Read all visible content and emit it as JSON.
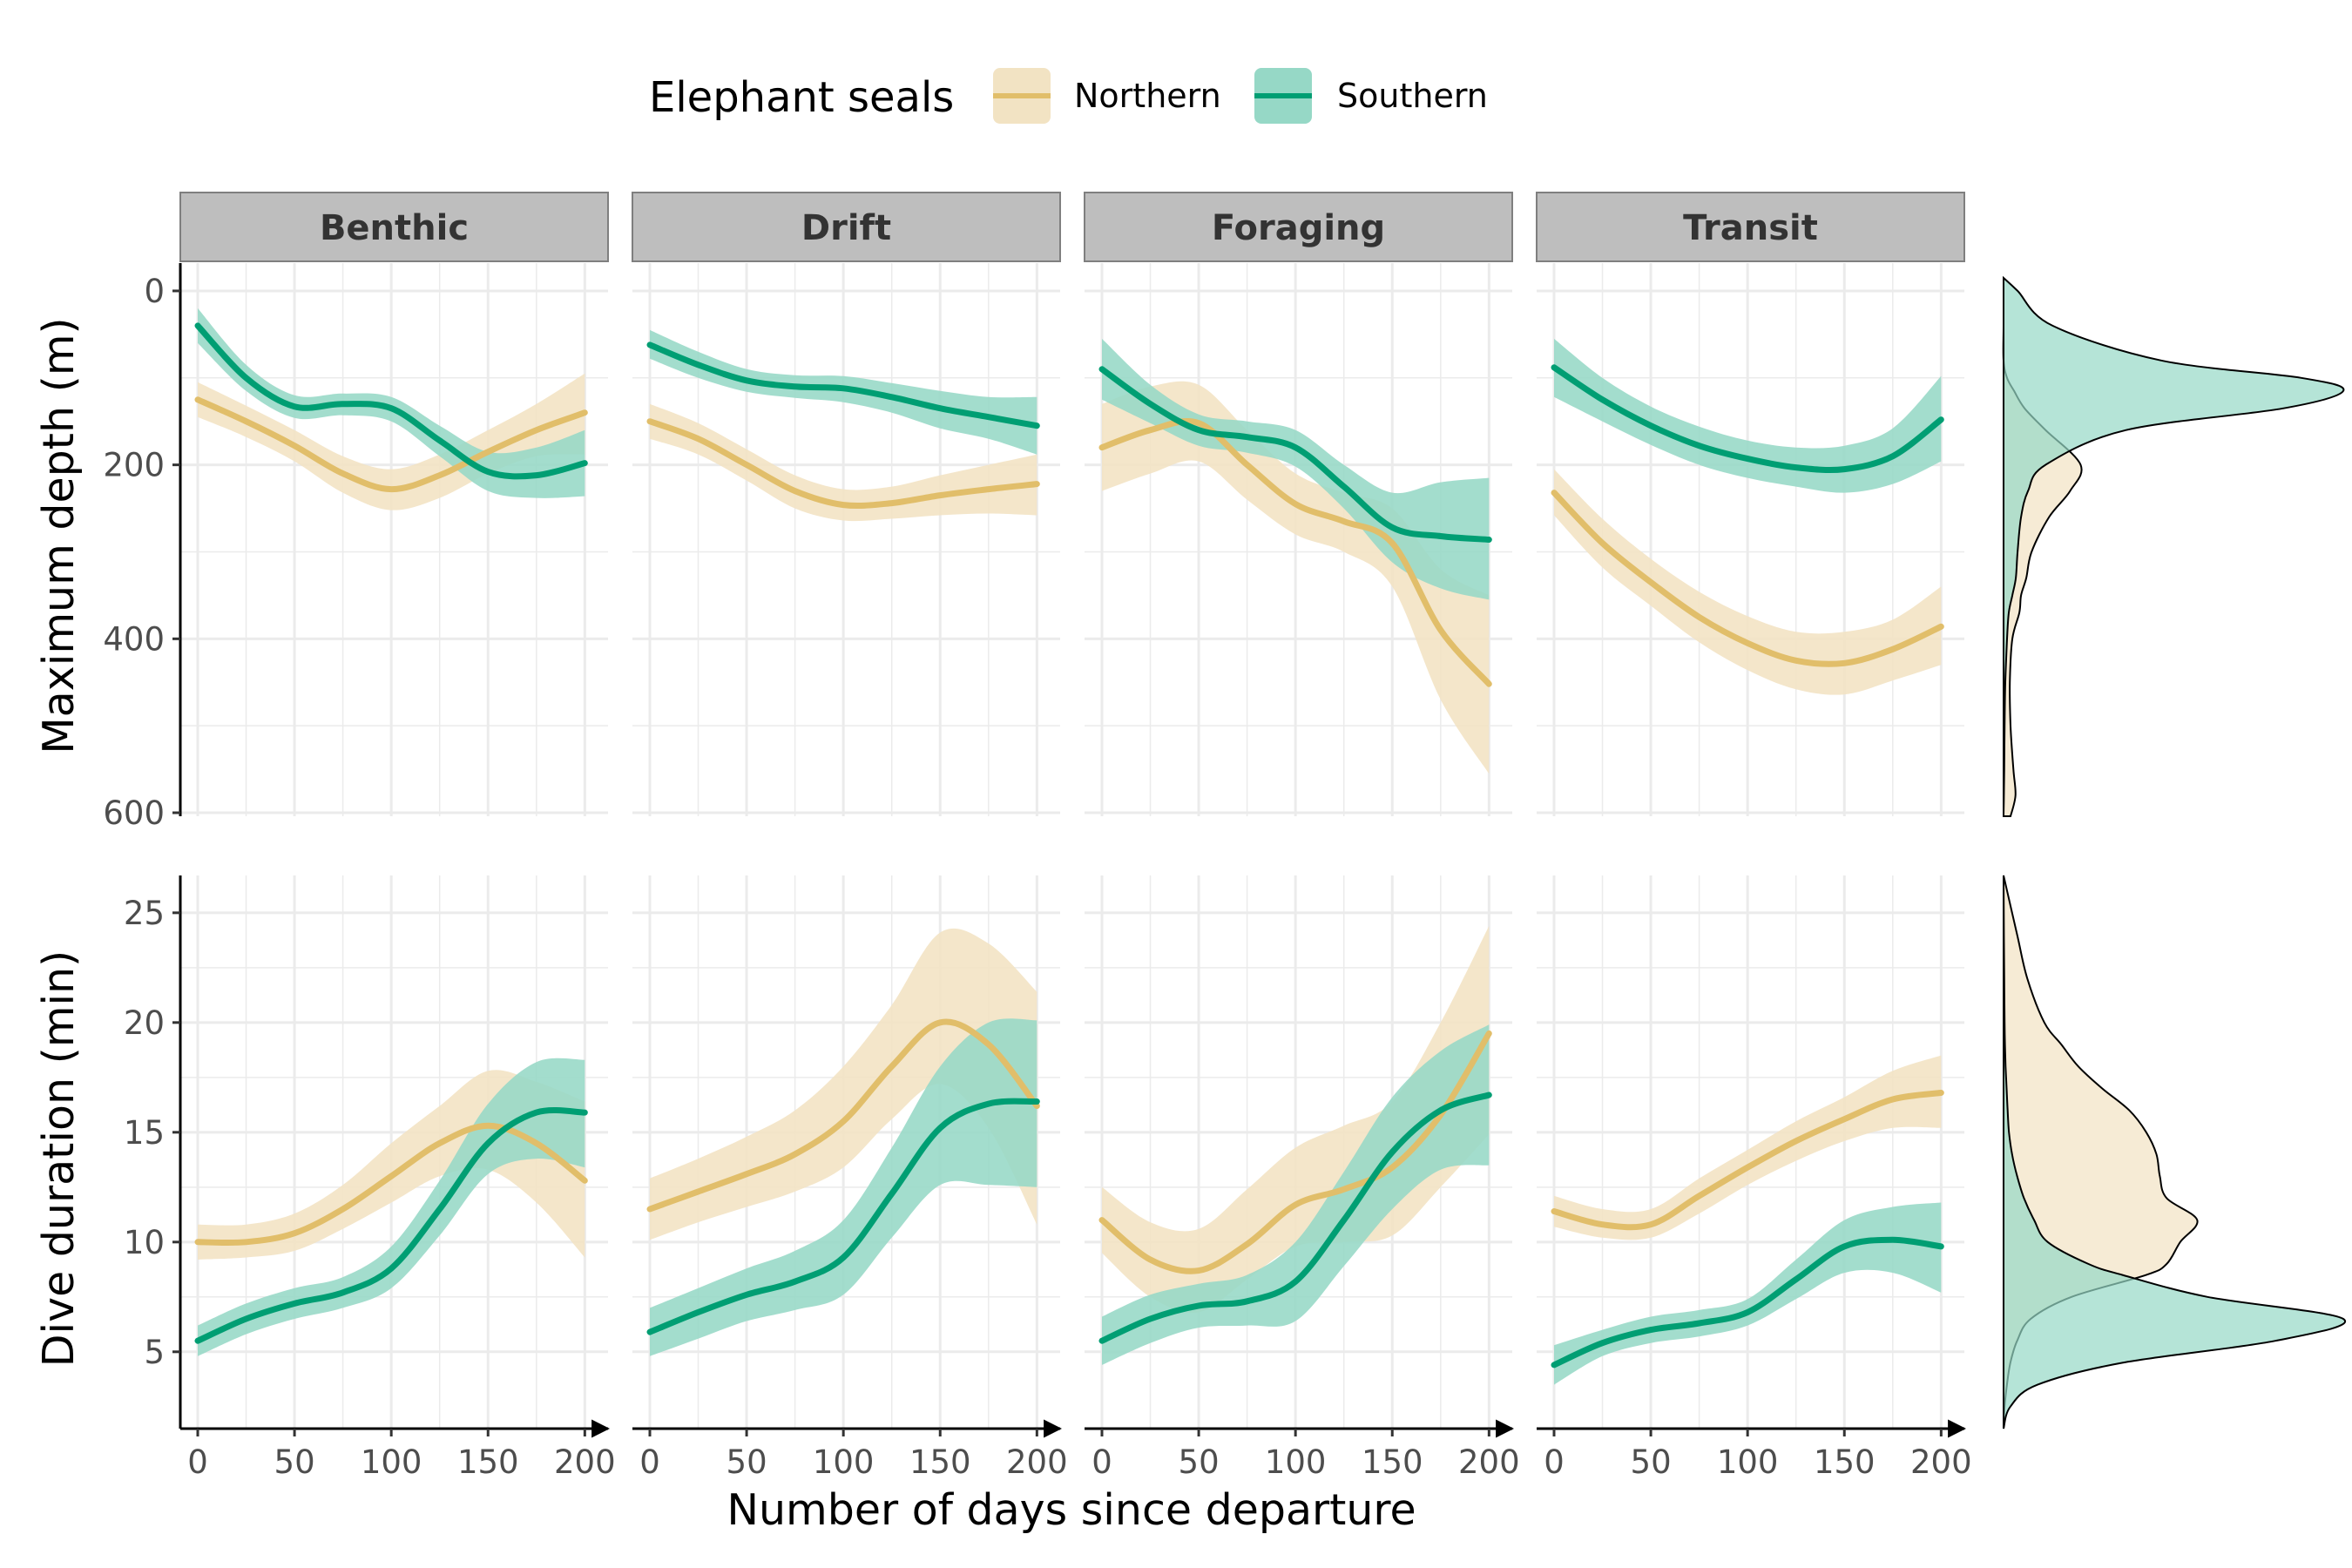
{
  "legend": {
    "title": "Elephant seals",
    "items": [
      {
        "label": "Northern",
        "line_color": "#E1BE6A",
        "fill_color": "#F2E3C3"
      },
      {
        "label": "Southern",
        "line_color": "#009E73",
        "fill_color": "#96D8C6"
      }
    ]
  },
  "axes": {
    "x_title": "Number of days since departure",
    "depth_title": "Maximum depth (m)",
    "duration_title": "Dive duration (min)"
  },
  "chart_data": {
    "type": "line",
    "facets": [
      "Benthic",
      "Drift",
      "Foraging",
      "Transit"
    ],
    "series_names": [
      "Northern",
      "Southern"
    ],
    "x_ticks": [
      0,
      50,
      100,
      150,
      200
    ],
    "xlim": [
      -9,
      212
    ],
    "depth": {
      "ylabel": "Maximum depth (m)",
      "y_ticks": [
        0,
        200,
        400,
        600
      ],
      "ylim": [
        -32,
        604
      ],
      "reversed": true,
      "panels": [
        {
          "facet": "Benthic",
          "series": [
            {
              "name": "Northern",
              "x": [
                0,
                25,
                50,
                75,
                100,
                125,
                150,
                175,
                200
              ],
              "y": [
                125,
                150,
                178,
                210,
                228,
                212,
                185,
                160,
                140
              ],
              "lower": [
                105,
                132,
                160,
                190,
                205,
                188,
                160,
                130,
                95
              ],
              "upper": [
                145,
                168,
                196,
                232,
                252,
                238,
                210,
                190,
                188
              ]
            },
            {
              "name": "Southern",
              "x": [
                0,
                25,
                50,
                75,
                100,
                125,
                150,
                175,
                200
              ],
              "y": [
                40,
                100,
                133,
                130,
                135,
                172,
                208,
                212,
                198
              ],
              "lower": [
                20,
                85,
                120,
                118,
                122,
                155,
                185,
                180,
                160
              ],
              "upper": [
                60,
                115,
                146,
                143,
                150,
                190,
                230,
                238,
                236
              ]
            }
          ]
        },
        {
          "facet": "Drift",
          "series": [
            {
              "name": "Northern",
              "x": [
                0,
                25,
                50,
                75,
                100,
                125,
                150,
                175,
                200
              ],
              "y": [
                150,
                170,
                200,
                230,
                246,
                244,
                235,
                228,
                222
              ],
              "lower": [
                130,
                152,
                182,
                212,
                228,
                225,
                212,
                200,
                188
              ],
              "upper": [
                170,
                188,
                218,
                250,
                264,
                262,
                258,
                256,
                258
              ]
            },
            {
              "name": "Southern",
              "x": [
                0,
                25,
                50,
                75,
                100,
                125,
                150,
                175,
                200
              ],
              "y": [
                62,
                85,
                103,
                110,
                112,
                122,
                135,
                145,
                155
              ],
              "lower": [
                45,
                70,
                90,
                97,
                98,
                106,
                115,
                122,
                122
              ],
              "upper": [
                78,
                100,
                116,
                123,
                128,
                140,
                158,
                170,
                188
              ]
            }
          ]
        },
        {
          "facet": "Foraging",
          "series": [
            {
              "name": "Northern",
              "x": [
                0,
                25,
                50,
                75,
                100,
                125,
                150,
                175,
                200
              ],
              "y": [
                180,
                160,
                152,
                200,
                245,
                265,
                290,
                390,
                452
              ],
              "lower": [
                130,
                110,
                108,
                160,
                210,
                232,
                250,
                320,
                350
              ],
              "upper": [
                230,
                210,
                196,
                240,
                280,
                300,
                340,
                470,
                555
              ]
            },
            {
              "name": "Southern",
              "x": [
                0,
                25,
                50,
                75,
                100,
                125,
                150,
                175,
                200
              ],
              "y": [
                90,
                130,
                160,
                168,
                180,
                225,
                272,
                282,
                286
              ],
              "lower": [
                55,
                108,
                142,
                150,
                160,
                200,
                232,
                220,
                215
              ],
              "upper": [
                125,
                152,
                178,
                186,
                202,
                250,
                312,
                342,
                355
              ]
            }
          ]
        },
        {
          "facet": "Transit",
          "series": [
            {
              "name": "Northern",
              "x": [
                0,
                25,
                50,
                75,
                100,
                125,
                150,
                175,
                200
              ],
              "y": [
                232,
                290,
                335,
                375,
                405,
                425,
                428,
                412,
                386
              ],
              "lower": [
                205,
                262,
                308,
                346,
                374,
                392,
                392,
                378,
                340
              ],
              "upper": [
                258,
                318,
                362,
                404,
                436,
                458,
                464,
                448,
                430
              ]
            },
            {
              "name": "Southern",
              "x": [
                0,
                25,
                50,
                75,
                100,
                125,
                150,
                175,
                200
              ],
              "y": [
                88,
                125,
                155,
                178,
                193,
                203,
                205,
                190,
                148
              ],
              "lower": [
                55,
                100,
                133,
                156,
                172,
                180,
                178,
                158,
                98
              ],
              "upper": [
                122,
                150,
                177,
                200,
                215,
                225,
                232,
                222,
                196
              ]
            }
          ]
        }
      ]
    },
    "duration": {
      "ylabel": "Dive duration (min)",
      "y_ticks": [
        5,
        10,
        15,
        20,
        25
      ],
      "ylim": [
        1.5,
        26.7
      ],
      "reversed": false,
      "panels": [
        {
          "facet": "Benthic",
          "series": [
            {
              "name": "Northern",
              "x": [
                0,
                25,
                50,
                75,
                100,
                125,
                150,
                175,
                200
              ],
              "y": [
                10,
                10,
                10.4,
                11.5,
                13,
                14.5,
                15.3,
                14.5,
                12.8
              ],
              "lower": [
                9.2,
                9.3,
                9.6,
                10.6,
                11.8,
                13,
                13.3,
                11.8,
                9.3
              ],
              "upper": [
                10.8,
                10.8,
                11.3,
                12.6,
                14.5,
                16.2,
                17.8,
                17.3,
                16.4
              ]
            },
            {
              "name": "Southern",
              "x": [
                0,
                25,
                50,
                75,
                100,
                125,
                150,
                175,
                200
              ],
              "y": [
                5.5,
                6.5,
                7.2,
                7.7,
                8.8,
                11.5,
                14.5,
                15.9,
                15.9
              ],
              "lower": [
                4.8,
                5.8,
                6.5,
                7,
                7.9,
                10.3,
                13.1,
                13.8,
                13.4
              ],
              "upper": [
                6.2,
                7.2,
                7.9,
                8.4,
                9.8,
                12.8,
                16.3,
                18.2,
                18.3
              ]
            }
          ]
        },
        {
          "facet": "Drift",
          "series": [
            {
              "name": "Northern",
              "x": [
                0,
                25,
                50,
                75,
                100,
                125,
                150,
                175,
                200
              ],
              "y": [
                11.5,
                12.3,
                13.1,
                14,
                15.5,
                18,
                20,
                19,
                16.2
              ],
              "lower": [
                10.1,
                10.9,
                11.6,
                12.3,
                13.4,
                15.6,
                17.2,
                15.2,
                10.8
              ],
              "upper": [
                12.9,
                13.8,
                14.8,
                16,
                18,
                20.8,
                24.1,
                23.6,
                21.4
              ]
            },
            {
              "name": "Southern",
              "x": [
                0,
                25,
                50,
                75,
                100,
                125,
                150,
                175,
                200
              ],
              "y": [
                5.9,
                6.8,
                7.6,
                8.2,
                9.3,
                12.2,
                15.2,
                16.3,
                16.4
              ],
              "lower": [
                4.8,
                5.6,
                6.4,
                6.9,
                7.6,
                10.2,
                12.6,
                12.6,
                12.5
              ],
              "upper": [
                7,
                7.9,
                8.8,
                9.6,
                11,
                14.3,
                18,
                20,
                20.1
              ]
            }
          ]
        },
        {
          "facet": "Foraging",
          "series": [
            {
              "name": "Northern",
              "x": [
                0,
                25,
                50,
                75,
                100,
                125,
                150,
                175,
                200
              ],
              "y": [
                11,
                9.2,
                8.7,
                9.9,
                11.7,
                12.4,
                13.4,
                15.8,
                19.5
              ],
              "lower": [
                9.5,
                7.5,
                6.8,
                8.3,
                9.8,
                10,
                10.3,
                12.5,
                14.9
              ],
              "upper": [
                12.5,
                10.9,
                10.6,
                12.4,
                14.3,
                15.3,
                16.4,
                20,
                24.4
              ]
            },
            {
              "name": "Southern",
              "x": [
                0,
                25,
                50,
                75,
                100,
                125,
                150,
                175,
                200
              ],
              "y": [
                5.5,
                6.5,
                7.1,
                7.3,
                8.2,
                11,
                14.1,
                16,
                16.7
              ],
              "lower": [
                4.4,
                5.4,
                6.1,
                6.2,
                6.4,
                8.9,
                11.5,
                13.3,
                13.5
              ],
              "upper": [
                6.6,
                7.6,
                8.1,
                8.5,
                10,
                13.2,
                16.6,
                18.7,
                19.9
              ]
            }
          ]
        },
        {
          "facet": "Transit",
          "series": [
            {
              "name": "Northern",
              "x": [
                0,
                25,
                50,
                75,
                100,
                125,
                150,
                175,
                200
              ],
              "y": [
                11.4,
                10.8,
                10.8,
                12.1,
                13.4,
                14.6,
                15.6,
                16.5,
                16.8
              ],
              "lower": [
                10.7,
                10.2,
                10.2,
                11.3,
                12.6,
                13.7,
                14.6,
                15.2,
                15.2
              ],
              "upper": [
                12.1,
                11.5,
                11.5,
                12.9,
                14.2,
                15.5,
                16.6,
                17.8,
                18.5
              ]
            },
            {
              "name": "Southern",
              "x": [
                0,
                25,
                50,
                75,
                100,
                125,
                150,
                175,
                200
              ],
              "y": [
                4.4,
                5.4,
                6,
                6.3,
                6.8,
                8.3,
                9.8,
                10.1,
                9.8
              ],
              "lower": [
                3.5,
                4.8,
                5.4,
                5.7,
                6.2,
                7.4,
                8.6,
                8.6,
                7.7
              ],
              "upper": [
                5.3,
                6,
                6.6,
                6.9,
                7.4,
                9.2,
                11,
                11.6,
                11.8
              ]
            }
          ]
        }
      ]
    },
    "marginal_density": {
      "depth": {
        "y": [
          -15,
          0,
          40,
          80,
          100,
          115,
          135,
          160,
          200,
          230,
          260,
          300,
          330,
          350,
          370,
          400,
          450,
          500,
          550,
          580,
          604
        ],
        "Northern": [
          0.0,
          0.0,
          0.0,
          0.0,
          0.01,
          0.03,
          0.06,
          0.12,
          0.22,
          0.19,
          0.13,
          0.08,
          0.065,
          0.05,
          0.045,
          0.025,
          0.018,
          0.02,
          0.028,
          0.034,
          0.02
        ],
        "Southern": [
          0.0,
          0.04,
          0.14,
          0.45,
          0.85,
          0.97,
          0.8,
          0.35,
          0.12,
          0.07,
          0.05,
          0.04,
          0.035,
          0.025,
          0.015,
          0.01,
          0.005,
          0.003,
          0.002,
          0.001,
          0.0
        ]
      },
      "duration": {
        "y": [
          1.5,
          2.5,
          3.5,
          4.5,
          5.5,
          6.5,
          7.5,
          8.5,
          9,
          10,
          11,
          12,
          13,
          14,
          15,
          16,
          17,
          18,
          19,
          20,
          22,
          24,
          26.7
        ],
        "Northern": [
          0.0,
          0.003,
          0.01,
          0.02,
          0.04,
          0.08,
          0.2,
          0.42,
          0.48,
          0.52,
          0.57,
          0.48,
          0.46,
          0.45,
          0.42,
          0.37,
          0.29,
          0.22,
          0.17,
          0.12,
          0.07,
          0.04,
          0.0
        ],
        "Southern": [
          0.0,
          0.02,
          0.1,
          0.35,
          0.8,
          1.0,
          0.6,
          0.35,
          0.25,
          0.13,
          0.09,
          0.06,
          0.04,
          0.025,
          0.016,
          0.012,
          0.009,
          0.006,
          0.004,
          0.003,
          0.002,
          0.001,
          0.0
        ]
      }
    }
  }
}
